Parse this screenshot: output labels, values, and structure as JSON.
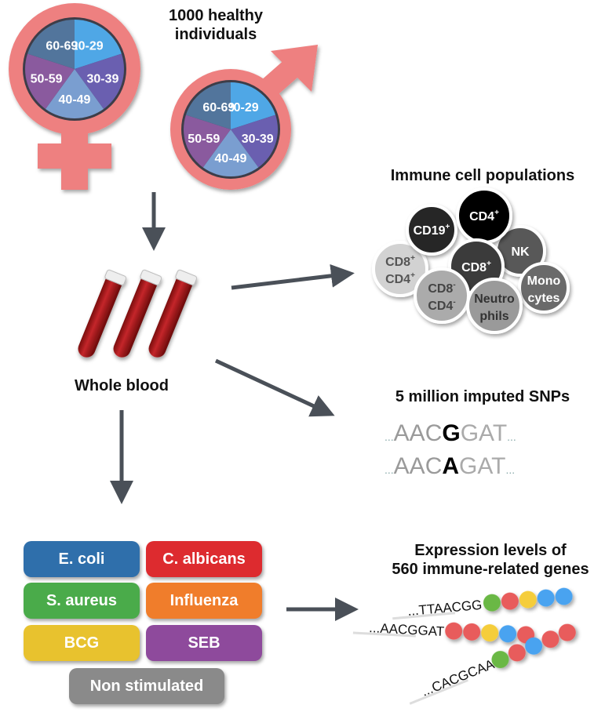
{
  "title": "1000 healthy individuals",
  "title_line1": "1000 healthy",
  "title_line2": "individuals",
  "age_groups": [
    "20-29",
    "30-39",
    "40-49",
    "50-59",
    "60-69"
  ],
  "age_colors": [
    "#4fa7e6",
    "#6a5fb0",
    "#7a9ed0",
    "#8a5a9e",
    "#52759c"
  ],
  "symbol_color": "#ee8080",
  "whole_blood": "Whole blood",
  "immune_title": "Immune cell populations",
  "cells": [
    {
      "l1": "CD8",
      "s1": "+",
      "l2": "CD4",
      "s2": "+",
      "fill": "#d2d2d2",
      "text": "#555"
    },
    {
      "l1": "CD19",
      "s1": "+",
      "l2": "",
      "s2": "",
      "fill": "#252525",
      "text": "#fff"
    },
    {
      "l1": "NK",
      "s1": "",
      "l2": "",
      "s2": "",
      "fill": "#585858",
      "text": "#fff"
    },
    {
      "l1": "CD4",
      "s1": "+",
      "l2": "",
      "s2": "",
      "fill": "#000000",
      "text": "#fff"
    },
    {
      "l1": "CD8",
      "s1": "+",
      "l2": "",
      "s2": "",
      "fill": "#3a3a3a",
      "text": "#fff"
    },
    {
      "l1": "CD8",
      "s1": "-",
      "l2": "CD4",
      "s2": "-",
      "fill": "#ababab",
      "text": "#444"
    },
    {
      "l1": "Mono",
      "s1": "",
      "l2": "cytes",
      "s2": "",
      "fill": "#6a6a6a",
      "text": "#fff"
    },
    {
      "l1": "Neutro",
      "s1": "",
      "l2": "phils",
      "s2": "",
      "fill": "#9a9a9a",
      "text": "#333"
    }
  ],
  "snp_title": "5 million imputed SNPs",
  "snp_rows": [
    {
      "pre": "...",
      "left": "AAC",
      "var": "G",
      "right": "GAT",
      "post": "..."
    },
    {
      "pre": "...",
      "left": "AAC",
      "var": "A",
      "right": "GAT",
      "post": "..."
    }
  ],
  "stimuli": [
    {
      "label": "E. coli",
      "color": "#2f6fab"
    },
    {
      "label": "C. albicans",
      "color": "#dd2b2f"
    },
    {
      "label": "S. aureus",
      "color": "#4aab4a"
    },
    {
      "label": "Influenza",
      "color": "#f07d2b"
    },
    {
      "label": "BCG",
      "color": "#e8c22e"
    },
    {
      "label": "SEB",
      "color": "#8e4a9c"
    },
    {
      "label": "Non stimulated",
      "color": "#8a8a8a"
    }
  ],
  "expr_title_line1": "Expression levels of",
  "expr_title_line2": "560 immune-related genes",
  "expr_rows": [
    {
      "seq": "...TTAACGG",
      "dots": [
        "#6ab845",
        "#e85c5c",
        "#f5cd3a",
        "#4aa3f0",
        "#4aa3f0"
      ]
    },
    {
      "seq": "...AACGGAT",
      "dots": [
        "#e85c5c",
        "#e85c5c",
        "#f5cd3a",
        "#4aa3f0",
        "#e85c5c"
      ]
    },
    {
      "seq": "...CACGCAA",
      "dots": [
        "#6ab845",
        "#e85c5c",
        "#4aa3f0",
        "#e85c5c",
        "#e85c5c"
      ]
    }
  ],
  "arrow_color": "#4a5058"
}
